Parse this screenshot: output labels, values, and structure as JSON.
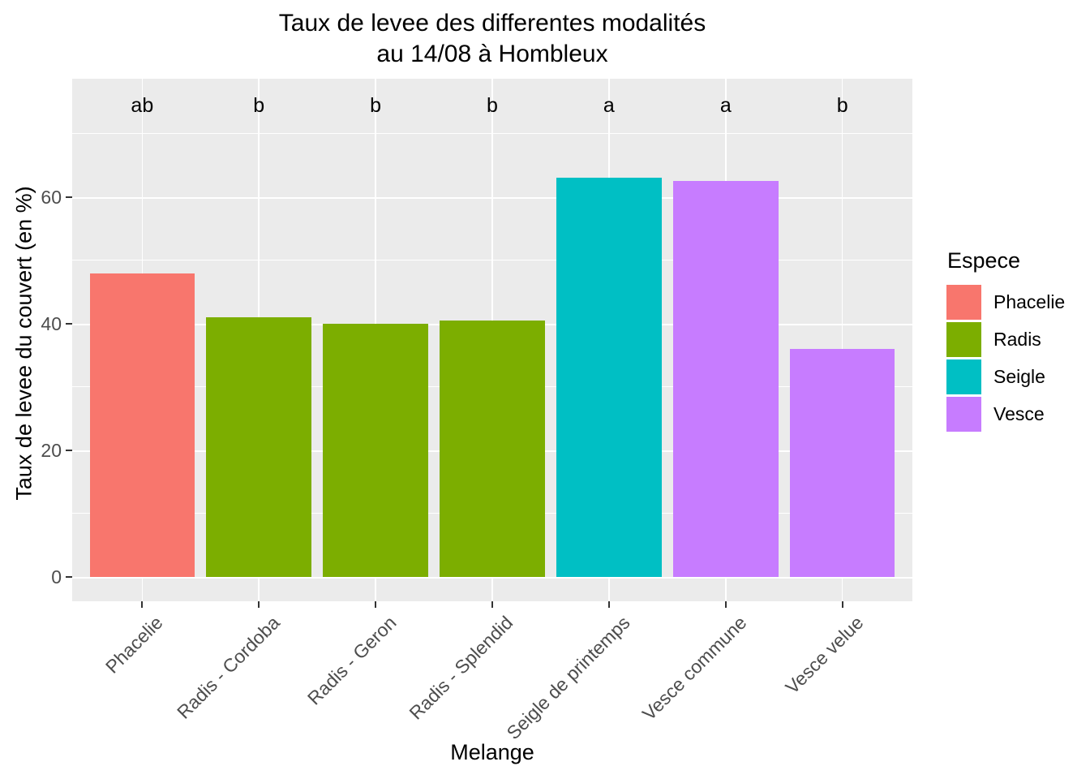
{
  "chart_data": {
    "type": "bar",
    "title_lines": [
      "Taux de levee des differentes modalités",
      "au 14/08 à Hombleux"
    ],
    "xlabel": "Melange",
    "ylabel": "Taux de levee du couvert (en %)",
    "categories": [
      "Phacelie",
      "Radis - Cordoba",
      "Radis - Geron",
      "Radis - Splendid",
      "Seigle de printemps",
      "Vesce commune",
      "Vesce velue"
    ],
    "values": [
      48,
      41,
      40,
      40.5,
      63,
      62.5,
      36
    ],
    "species": [
      "Phacelie",
      "Radis",
      "Radis",
      "Radis",
      "Seigle",
      "Vesce",
      "Vesce"
    ],
    "sig_letters": [
      "ab",
      "b",
      "b",
      "b",
      "a",
      "a",
      "b"
    ],
    "sig_letter_y": 74.5,
    "yticks": [
      0,
      20,
      40,
      60
    ],
    "yticks_minor": [
      10,
      30,
      50,
      70
    ],
    "ylim": [
      -3.85,
      78.7
    ],
    "grid": "on",
    "legend_position": "right",
    "legend": {
      "title": "Espece",
      "entries": [
        {
          "label": "Phacelie",
          "color": "#F8766D"
        },
        {
          "label": "Radis",
          "color": "#7CAE00"
        },
        {
          "label": "Seigle",
          "color": "#00BFC4"
        },
        {
          "label": "Vesce",
          "color": "#C77CFF"
        }
      ]
    },
    "colors": {
      "Phacelie": "#F8766D",
      "Radis": "#7CAE00",
      "Seigle": "#00BFC4",
      "Vesce": "#C77CFF",
      "panel_background": "#EBEBEB",
      "gridline": "#FFFFFF",
      "axis_text": "#4D4D4D",
      "title_text": "#000000"
    }
  }
}
